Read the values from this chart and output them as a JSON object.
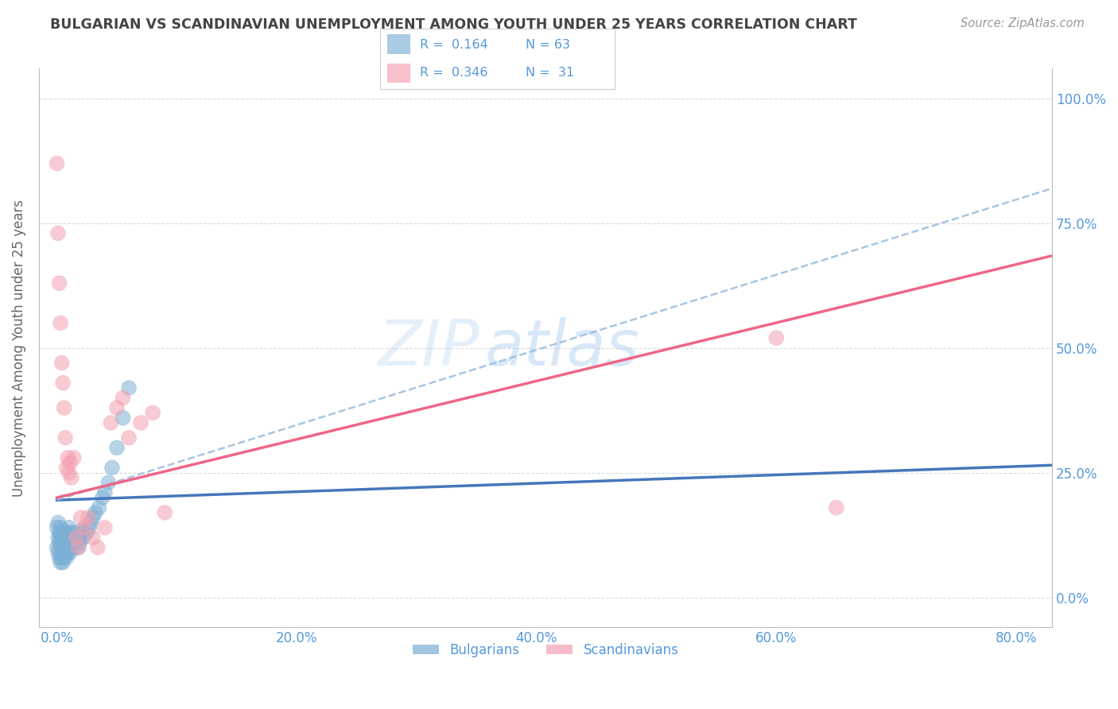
{
  "title": "BULGARIAN VS SCANDINAVIAN UNEMPLOYMENT AMONG YOUTH UNDER 25 YEARS CORRELATION CHART",
  "source": "Source: ZipAtlas.com",
  "ylabel": "Unemployment Among Youth under 25 years",
  "xlabel_ticks_labels": [
    "0.0%",
    "20.0%",
    "40.0%",
    "60.0%",
    "80.0%"
  ],
  "xlabel_ticks_vals": [
    0.0,
    0.2,
    0.4,
    0.6,
    0.8
  ],
  "ylabel_ticks_labels": [
    "0.0%",
    "25.0%",
    "50.0%",
    "75.0%",
    "100.0%"
  ],
  "ylabel_ticks_vals": [
    0.0,
    0.25,
    0.5,
    0.75,
    1.0
  ],
  "xlim": [
    -0.015,
    0.83
  ],
  "ylim": [
    -0.06,
    1.06
  ],
  "watermark_zip": "ZIP",
  "watermark_atlas": "atlas",
  "blue_scatter_color": "#7BAFD4",
  "pink_scatter_color": "#F4A0B0",
  "blue_line_color": "#4477BB",
  "pink_line_color": "#EE6688",
  "dashed_line_color": "#99BBDD",
  "bg_color": "#FFFFFF",
  "grid_color": "#CCCCCC",
  "title_color": "#444444",
  "axis_label_color": "#5599DD",
  "legend_text_color": "#5599DD",
  "bulgarians_x": [
    0.0,
    0.0,
    0.001,
    0.001,
    0.001,
    0.002,
    0.002,
    0.002,
    0.003,
    0.003,
    0.003,
    0.003,
    0.004,
    0.004,
    0.004,
    0.005,
    0.005,
    0.005,
    0.006,
    0.006,
    0.006,
    0.007,
    0.007,
    0.007,
    0.008,
    0.008,
    0.008,
    0.009,
    0.009,
    0.009,
    0.01,
    0.01,
    0.01,
    0.011,
    0.011,
    0.012,
    0.012,
    0.013,
    0.013,
    0.014,
    0.015,
    0.016,
    0.016,
    0.017,
    0.018,
    0.019,
    0.02,
    0.021,
    0.022,
    0.023,
    0.025,
    0.027,
    0.028,
    0.03,
    0.032,
    0.035,
    0.038,
    0.04,
    0.043,
    0.046,
    0.05,
    0.055,
    0.06
  ],
  "bulgarians_y": [
    0.14,
    0.1,
    0.12,
    0.09,
    0.15,
    0.08,
    0.11,
    0.13,
    0.07,
    0.1,
    0.12,
    0.14,
    0.09,
    0.11,
    0.08,
    0.07,
    0.09,
    0.12,
    0.08,
    0.1,
    0.11,
    0.09,
    0.11,
    0.13,
    0.08,
    0.1,
    0.12,
    0.09,
    0.11,
    0.13,
    0.1,
    0.12,
    0.14,
    0.09,
    0.11,
    0.1,
    0.12,
    0.11,
    0.13,
    0.12,
    0.1,
    0.11,
    0.13,
    0.12,
    0.1,
    0.11,
    0.12,
    0.13,
    0.12,
    0.14,
    0.13,
    0.14,
    0.15,
    0.16,
    0.17,
    0.18,
    0.2,
    0.21,
    0.23,
    0.26,
    0.3,
    0.36,
    0.42
  ],
  "scandinavians_x": [
    0.0,
    0.001,
    0.002,
    0.003,
    0.004,
    0.005,
    0.006,
    0.007,
    0.008,
    0.009,
    0.01,
    0.011,
    0.012,
    0.014,
    0.016,
    0.018,
    0.02,
    0.023,
    0.026,
    0.03,
    0.034,
    0.04,
    0.045,
    0.05,
    0.055,
    0.06,
    0.07,
    0.08,
    0.09,
    0.6,
    0.65
  ],
  "scandinavians_y": [
    0.87,
    0.73,
    0.63,
    0.55,
    0.47,
    0.43,
    0.38,
    0.32,
    0.26,
    0.28,
    0.25,
    0.27,
    0.24,
    0.28,
    0.12,
    0.1,
    0.16,
    0.14,
    0.16,
    0.12,
    0.1,
    0.14,
    0.35,
    0.38,
    0.4,
    0.32,
    0.35,
    0.37,
    0.17,
    0.52,
    0.18
  ],
  "blue_solid_line": {
    "x0": 0.0,
    "x1": 0.83,
    "y0": 0.195,
    "y1": 0.265
  },
  "pink_solid_line": {
    "x0": 0.0,
    "x1": 0.83,
    "y0": 0.2,
    "y1": 0.685
  },
  "dashed_line": {
    "x0": 0.0,
    "x1": 0.83,
    "y0": 0.195,
    "y1": 0.82
  }
}
